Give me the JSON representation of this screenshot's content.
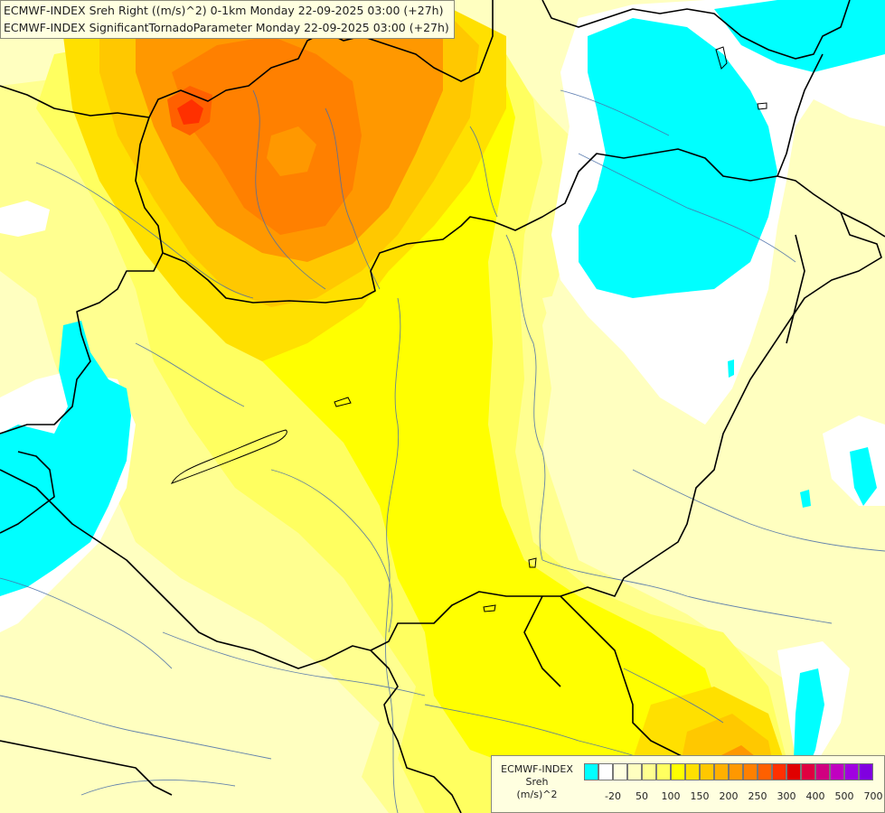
{
  "title_lines": [
    "ECMWF-INDEX Sreh Right ((m/s)^2) 0-1km Monday 22-09-2025 03:00 (+27h)",
    "ECMWF-INDEX SignificantTornadoParameter Monday 22-09-2025 03:00 (+27h)"
  ],
  "legend": {
    "source": "ECMWF-INDEX",
    "variable": "Sreh",
    "unit": "(m/s)^2",
    "colors": [
      "#00ffff",
      "#ffffff",
      "#ffffe0",
      "#ffffc0",
      "#ffff90",
      "#ffff60",
      "#ffff00",
      "#ffe000",
      "#ffc800",
      "#ffb000",
      "#ff9800",
      "#ff8000",
      "#ff6000",
      "#ff3000",
      "#e00000",
      "#e00040",
      "#d00080",
      "#c000c0",
      "#a000e0",
      "#8000e0",
      "#6000c0",
      "#4000a0",
      "#200080",
      "#000080"
    ],
    "tick_labels": [
      {
        "label": "-20",
        "after_swatch": 1
      },
      {
        "label": "50",
        "after_swatch": 3
      },
      {
        "label": "100",
        "after_swatch": 5
      },
      {
        "label": "150",
        "after_swatch": 7
      },
      {
        "label": "200",
        "after_swatch": 9
      },
      {
        "label": "250",
        "after_swatch": 11
      },
      {
        "label": "300",
        "after_swatch": 13
      },
      {
        "label": "400",
        "after_swatch": 15
      },
      {
        "label": "500",
        "after_swatch": 17
      },
      {
        "label": "700",
        "after_swatch": 19
      }
    ]
  },
  "palette": {
    "pale": "#ffffc0",
    "light_yellow": "#ffff90",
    "yellow": "#ffff60",
    "strong_yellow": "#ffff00",
    "gold": "#ffe000",
    "amber": "#ffc800",
    "orange": "#ff9800",
    "deep_orange": "#ff8000",
    "red_orange": "#ff6000",
    "red": "#ff3000",
    "cyan": "#00ffff",
    "white": "#ffffff",
    "border": "#000000",
    "river": "#4a6ea8"
  }
}
